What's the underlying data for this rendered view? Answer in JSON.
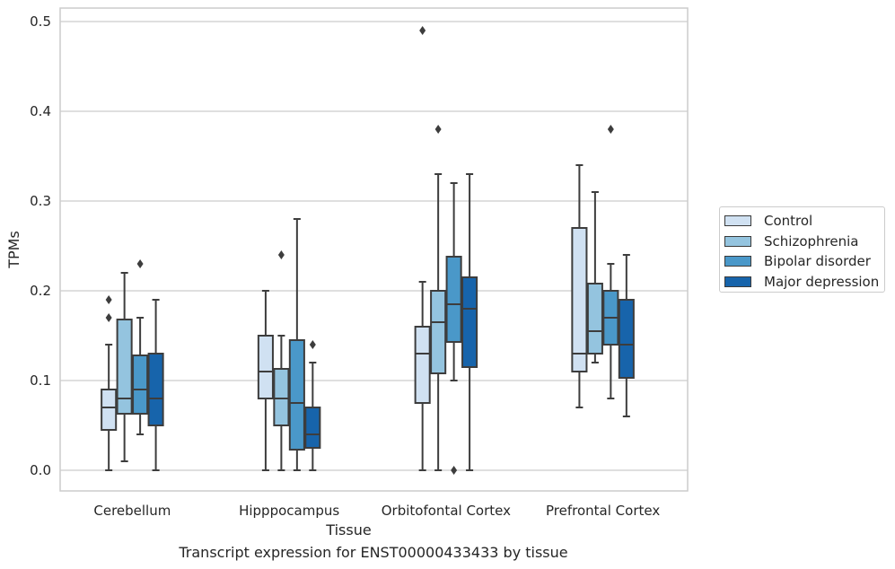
{
  "chart_data": {
    "type": "box",
    "title": "",
    "caption": "Transcript expression for ENST00000433433 by tissue",
    "xlabel": "Tissue",
    "ylabel": "TPMs",
    "ylim": [
      -0.023,
      0.515
    ],
    "yticks": [
      "0.0",
      "0.1",
      "0.2",
      "0.3",
      "0.4",
      "0.5"
    ],
    "grid": true,
    "legend_position": "right",
    "categories": [
      "Cerebellum",
      "Hipppocampus",
      "Orbitofontal Cortex",
      "Prefrontal Cortex"
    ],
    "series": [
      {
        "name": "Control",
        "color": "#d0e1f2",
        "boxes": [
          {
            "whislo": 0.0,
            "q1": 0.045,
            "med": 0.07,
            "q3": 0.09,
            "whishi": 0.14,
            "fliers": [
              0.17,
              0.19
            ]
          },
          {
            "whislo": 0.0,
            "q1": 0.08,
            "med": 0.11,
            "q3": 0.15,
            "whishi": 0.2,
            "fliers": []
          },
          {
            "whislo": 0.0,
            "q1": 0.075,
            "med": 0.13,
            "q3": 0.16,
            "whishi": 0.21,
            "fliers": [
              0.49
            ]
          },
          {
            "whislo": 0.07,
            "q1": 0.11,
            "med": 0.13,
            "q3": 0.27,
            "whishi": 0.34,
            "fliers": []
          }
        ]
      },
      {
        "name": "Schizophrenia",
        "color": "#94c4df",
        "boxes": [
          {
            "whislo": 0.01,
            "q1": 0.063,
            "med": 0.08,
            "q3": 0.168,
            "whishi": 0.22,
            "fliers": []
          },
          {
            "whislo": 0.0,
            "q1": 0.05,
            "med": 0.08,
            "q3": 0.113,
            "whishi": 0.15,
            "fliers": [
              0.24
            ]
          },
          {
            "whislo": 0.0,
            "q1": 0.108,
            "med": 0.165,
            "q3": 0.2,
            "whishi": 0.33,
            "fliers": [
              0.38
            ]
          },
          {
            "whislo": 0.12,
            "q1": 0.13,
            "med": 0.155,
            "q3": 0.208,
            "whishi": 0.31,
            "fliers": []
          }
        ]
      },
      {
        "name": "Bipolar disorder",
        "color": "#4a98c9",
        "boxes": [
          {
            "whislo": 0.04,
            "q1": 0.063,
            "med": 0.09,
            "q3": 0.128,
            "whishi": 0.17,
            "fliers": [
              0.23
            ]
          },
          {
            "whislo": 0.0,
            "q1": 0.023,
            "med": 0.075,
            "q3": 0.145,
            "whishi": 0.28,
            "fliers": []
          },
          {
            "whislo": 0.1,
            "q1": 0.143,
            "med": 0.185,
            "q3": 0.238,
            "whishi": 0.32,
            "fliers": [
              0.0
            ]
          },
          {
            "whislo": 0.08,
            "q1": 0.14,
            "med": 0.17,
            "q3": 0.2,
            "whishi": 0.23,
            "fliers": [
              0.38
            ]
          }
        ]
      },
      {
        "name": "Major depression",
        "color": "#1764ab",
        "boxes": [
          {
            "whislo": 0.0,
            "q1": 0.05,
            "med": 0.08,
            "q3": 0.13,
            "whishi": 0.19,
            "fliers": []
          },
          {
            "whislo": 0.0,
            "q1": 0.025,
            "med": 0.04,
            "q3": 0.07,
            "whishi": 0.12,
            "fliers": [
              0.14
            ]
          },
          {
            "whislo": 0.0,
            "q1": 0.115,
            "med": 0.18,
            "q3": 0.215,
            "whishi": 0.33,
            "fliers": []
          },
          {
            "whislo": 0.06,
            "q1": 0.103,
            "med": 0.14,
            "q3": 0.19,
            "whishi": 0.24,
            "fliers": []
          }
        ]
      }
    ]
  }
}
